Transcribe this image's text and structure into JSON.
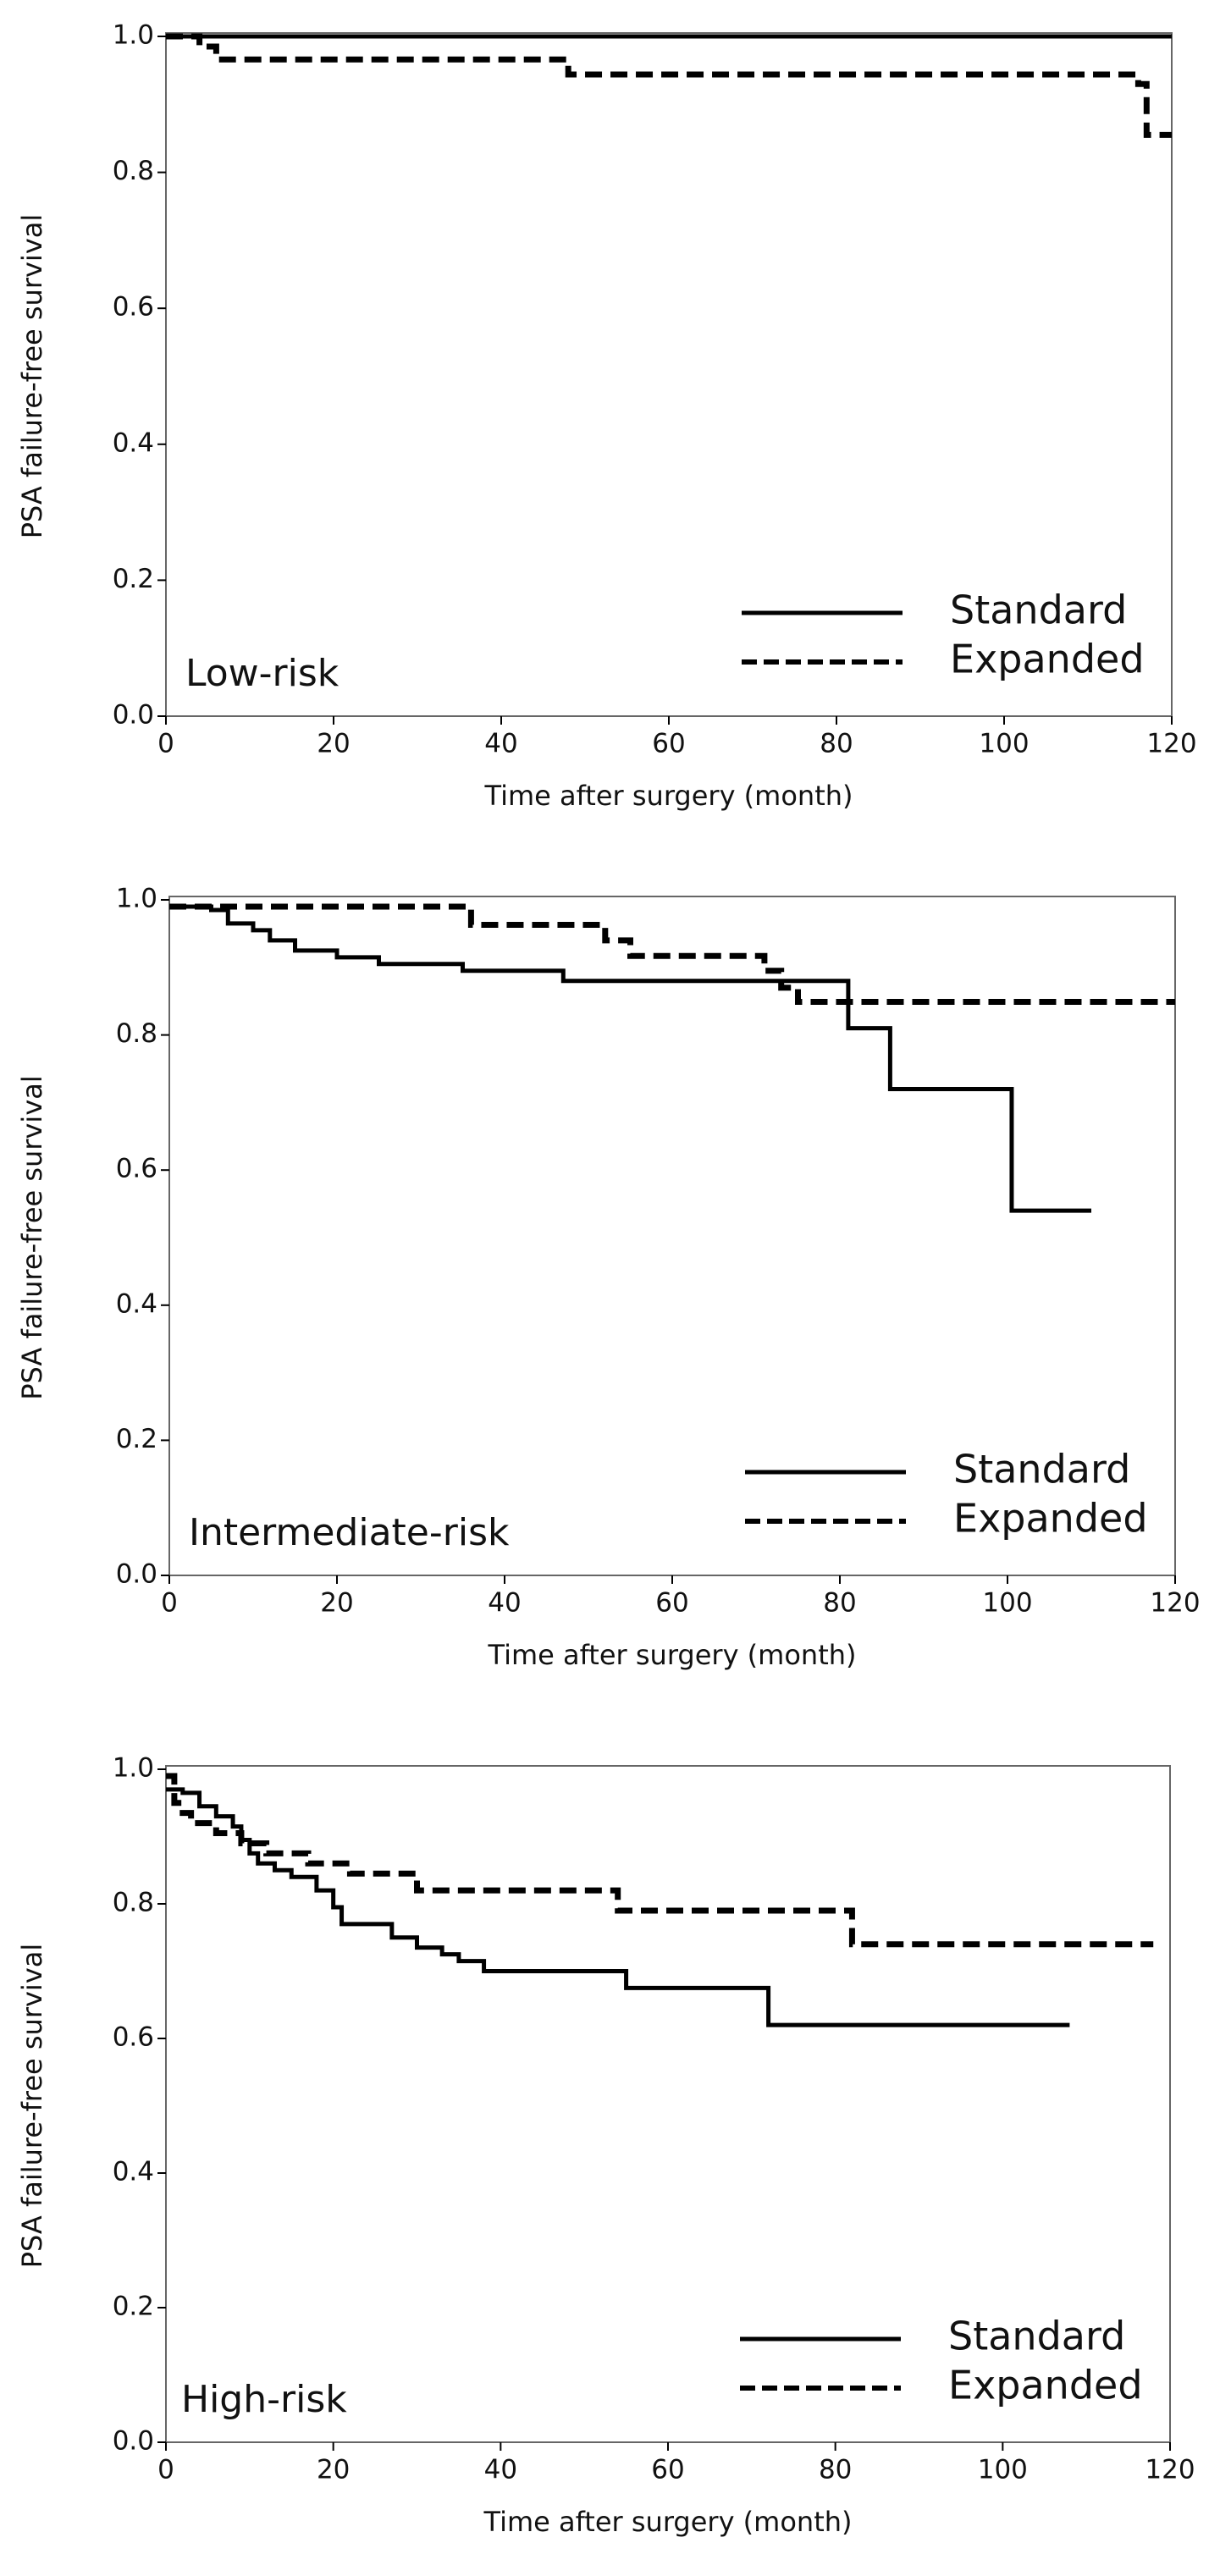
{
  "chart_data": [
    {
      "type": "step",
      "annotation": "Low-risk",
      "xlabel": "Time after surgery (month)",
      "ylabel": "PSA failure-free survival",
      "xlim": [
        0,
        120
      ],
      "ylim": [
        0,
        1
      ],
      "xticks": [
        0,
        20,
        40,
        60,
        80,
        100,
        120
      ],
      "yticks": [
        {
          "value": 0,
          "label": "0.0"
        },
        0.2,
        0.4,
        0.6,
        0.8,
        {
          "value": 1,
          "label": "1.0"
        }
      ],
      "legend": "lower right",
      "series": [
        {
          "name": "Standard",
          "color": "#000000",
          "style": "solid",
          "x": [
            0,
            120
          ],
          "values": [
            1,
            1
          ]
        },
        {
          "name": "Expanded",
          "color": "#000000",
          "style": "dashed",
          "x": [
            0,
            4,
            6,
            48,
            116,
            117,
            120
          ],
          "values": [
            1,
            0.985,
            0.966,
            0.944,
            0.93,
            0.855,
            0.855
          ]
        }
      ]
    },
    {
      "type": "step",
      "annotation": "Intermediate-risk",
      "xlabel": "Time after surgery (month)",
      "ylabel": "PSA failure-free survival",
      "xlim": [
        0,
        120
      ],
      "ylim": [
        0,
        1
      ],
      "xticks": [
        0,
        20,
        40,
        60,
        80,
        100,
        120
      ],
      "yticks": [
        {
          "value": 0,
          "label": "0.0"
        },
        0.2,
        0.4,
        0.6,
        0.8,
        {
          "value": 1,
          "label": "1.0"
        }
      ],
      "legend": "lower right",
      "series": [
        {
          "name": "Standard",
          "color": "#000000",
          "style": "solid",
          "x": [
            0,
            5,
            7,
            10,
            12,
            15,
            20,
            25,
            35,
            47,
            81,
            86,
            100.5,
            110
          ],
          "values": [
            0.99,
            0.985,
            0.965,
            0.955,
            0.94,
            0.925,
            0.915,
            0.905,
            0.895,
            0.88,
            0.81,
            0.72,
            0.54,
            0.54
          ]
        },
        {
          "name": "Expanded",
          "color": "#000000",
          "style": "dashed",
          "x": [
            0,
            36,
            52,
            55,
            71,
            73,
            75,
            120
          ],
          "values": [
            0.99,
            0.963,
            0.94,
            0.917,
            0.895,
            0.87,
            0.849,
            0.849
          ]
        }
      ]
    },
    {
      "type": "step",
      "annotation": "High-risk",
      "xlabel": "Time after surgery (month)",
      "ylabel": "PSA failure-free survival",
      "xlim": [
        0,
        120
      ],
      "ylim": [
        0,
        1
      ],
      "xticks": [
        0,
        20,
        40,
        60,
        80,
        100,
        120
      ],
      "yticks": [
        {
          "value": 0,
          "label": "0.0"
        },
        0.2,
        0.4,
        0.6,
        0.8,
        {
          "value": 1,
          "label": "1.0"
        }
      ],
      "legend": "lower right",
      "series": [
        {
          "name": "Standard",
          "color": "#000000",
          "style": "solid",
          "x": [
            0,
            2,
            4,
            6,
            8,
            9,
            10,
            11,
            13,
            15,
            18,
            20,
            21,
            27,
            30,
            33,
            35,
            38,
            55,
            72,
            108
          ],
          "values": [
            0.97,
            0.965,
            0.945,
            0.93,
            0.915,
            0.895,
            0.875,
            0.86,
            0.85,
            0.84,
            0.82,
            0.795,
            0.77,
            0.75,
            0.735,
            0.725,
            0.715,
            0.7,
            0.675,
            0.62,
            0.62
          ]
        },
        {
          "name": "Expanded",
          "color": "#000000",
          "style": "dashed",
          "x": [
            0,
            1,
            2,
            3,
            6,
            9,
            12,
            17,
            22,
            30,
            54,
            82,
            118
          ],
          "values": [
            0.99,
            0.95,
            0.935,
            0.92,
            0.905,
            0.89,
            0.875,
            0.86,
            0.845,
            0.82,
            0.79,
            0.74,
            0.74
          ]
        }
      ]
    }
  ]
}
